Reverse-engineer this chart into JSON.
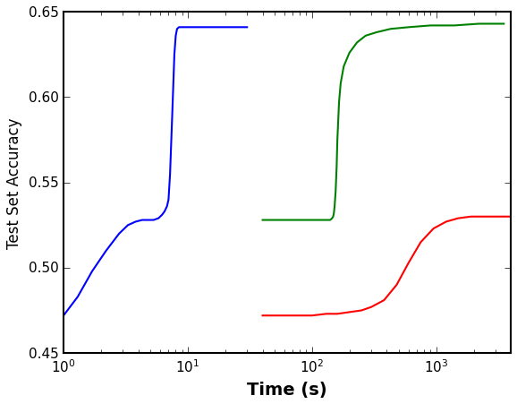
{
  "title": "",
  "xlabel": "Time (s)",
  "ylabel": "Test Set Accuracy",
  "xlim_log": [
    1.0,
    4000.0
  ],
  "ylim": [
    0.45,
    0.65
  ],
  "yticks": [
    0.45,
    0.5,
    0.55,
    0.6,
    0.65
  ],
  "background_color": "#ffffff",
  "line_width": 1.5,
  "blue_line": {
    "color": "#0000ff",
    "x": [
      1.0,
      1.3,
      1.7,
      2.2,
      2.8,
      3.3,
      3.8,
      4.3,
      4.8,
      5.3,
      5.8,
      6.0,
      6.2,
      6.5,
      6.8,
      7.0,
      7.2,
      7.5,
      7.8,
      8.0,
      8.2,
      8.5,
      9.0,
      10.0,
      12.0,
      15.0,
      20.0,
      30.0
    ],
    "y": [
      0.472,
      0.483,
      0.498,
      0.51,
      0.52,
      0.525,
      0.527,
      0.528,
      0.528,
      0.528,
      0.529,
      0.53,
      0.531,
      0.533,
      0.536,
      0.54,
      0.555,
      0.59,
      0.625,
      0.636,
      0.64,
      0.641,
      0.641,
      0.641,
      0.641,
      0.641,
      0.641,
      0.641
    ]
  },
  "green_line": {
    "color": "#008000",
    "x": [
      40.0,
      50.0,
      60.0,
      70.0,
      80.0,
      90.0,
      100.0,
      110.0,
      120.0,
      130.0,
      140.0,
      145.0,
      148.0,
      150.0,
      152.0,
      155.0,
      158.0,
      160.0,
      165.0,
      170.0,
      180.0,
      200.0,
      230.0,
      270.0,
      330.0,
      430.0,
      600.0,
      900.0,
      1400.0,
      2200.0,
      3500.0
    ],
    "y": [
      0.528,
      0.528,
      0.528,
      0.528,
      0.528,
      0.528,
      0.528,
      0.528,
      0.528,
      0.528,
      0.528,
      0.529,
      0.53,
      0.532,
      0.536,
      0.545,
      0.56,
      0.575,
      0.597,
      0.608,
      0.618,
      0.626,
      0.632,
      0.636,
      0.638,
      0.64,
      0.641,
      0.642,
      0.642,
      0.643,
      0.643
    ]
  },
  "red_line": {
    "color": "#ff0000",
    "x": [
      40.0,
      50.0,
      60.0,
      80.0,
      100.0,
      130.0,
      160.0,
      200.0,
      250.0,
      300.0,
      380.0,
      480.0,
      600.0,
      750.0,
      950.0,
      1200.0,
      1500.0,
      1900.0,
      2500.0,
      3200.0,
      4000.0
    ],
    "y": [
      0.472,
      0.472,
      0.472,
      0.472,
      0.472,
      0.473,
      0.473,
      0.474,
      0.475,
      0.477,
      0.481,
      0.49,
      0.503,
      0.515,
      0.523,
      0.527,
      0.529,
      0.53,
      0.53,
      0.53,
      0.53
    ]
  },
  "xlabel_fontsize": 14,
  "ylabel_fontsize": 12,
  "tick_fontsize": 11,
  "spine_linewidth": 1.5
}
